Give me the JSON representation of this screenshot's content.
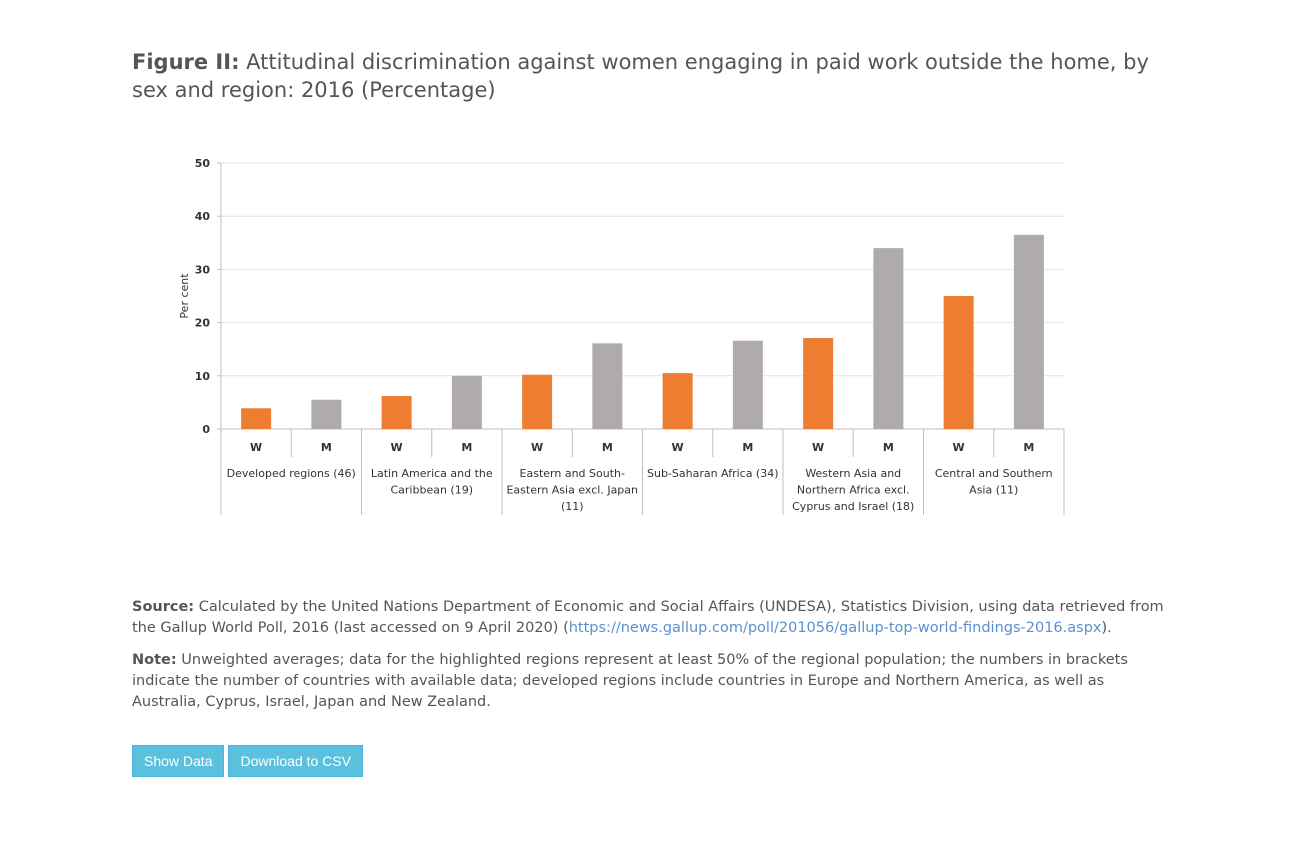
{
  "title": {
    "lead": "Figure II:",
    "text": "Attitudinal discrimination against women engaging in paid work outside the home, by sex and region: 2016 (Percentage)"
  },
  "chart_data": {
    "type": "bar",
    "ylabel": "Per cent",
    "ylim": [
      0,
      50
    ],
    "yticks": [
      0,
      10,
      20,
      30,
      40,
      50
    ],
    "grid": true,
    "colors": {
      "W": "#ed7d31",
      "M": "#afabab"
    },
    "categories": [
      {
        "name": "Developed regions (46)",
        "lines": [
          "Developed regions (46)"
        ],
        "W": 3.9,
        "M": 5.5
      },
      {
        "name": "Latin America and the Caribbean (19)",
        "lines": [
          "Latin America and the",
          "Caribbean (19)"
        ],
        "W": 6.2,
        "M": 10.0
      },
      {
        "name": "Eastern and South-Eastern Asia excl. Japan (11)",
        "lines": [
          "Eastern and South-",
          "Eastern Asia excl. Japan",
          "(11)"
        ],
        "W": 10.2,
        "M": 16.1
      },
      {
        "name": "Sub-Saharan Africa (34)",
        "lines": [
          "Sub-Saharan Africa (34)"
        ],
        "W": 10.5,
        "M": 16.6
      },
      {
        "name": "Western Asia and Northern Africa excl. Cyprus and Israel (18)",
        "lines": [
          "Western Asia and",
          "Northern Africa excl.",
          "Cyprus and Israel (18)"
        ],
        "W": 17.1,
        "M": 34.0
      },
      {
        "name": "Central and Southern Asia (11)",
        "lines": [
          "Central and Southern",
          "Asia (11)"
        ],
        "W": 25.0,
        "M": 36.5
      }
    ],
    "series_labels": {
      "W": "W",
      "M": "M"
    }
  },
  "source": {
    "label": "Source:",
    "text": "Calculated by the United Nations Department of Economic and Social Affairs (UNDESA), Statistics Division, using data retrieved from the Gallup World Poll, 2016 (last accessed on 9 April 2020) (",
    "link": "https://news.gallup.com/poll/201056/gallup-top-world-findings-2016.aspx",
    "after": ")."
  },
  "note": {
    "label": "Note:",
    "text": "Unweighted averages; data for the highlighted regions represent at least 50% of the regional population; the numbers in brackets indicate the number of countries with available data; developed regions include countries in Europe and Northern America, as well as Australia, Cyprus, Israel, Japan and New Zealand."
  },
  "buttons": {
    "show_data": "Show Data",
    "download_csv": "Download to CSV"
  }
}
